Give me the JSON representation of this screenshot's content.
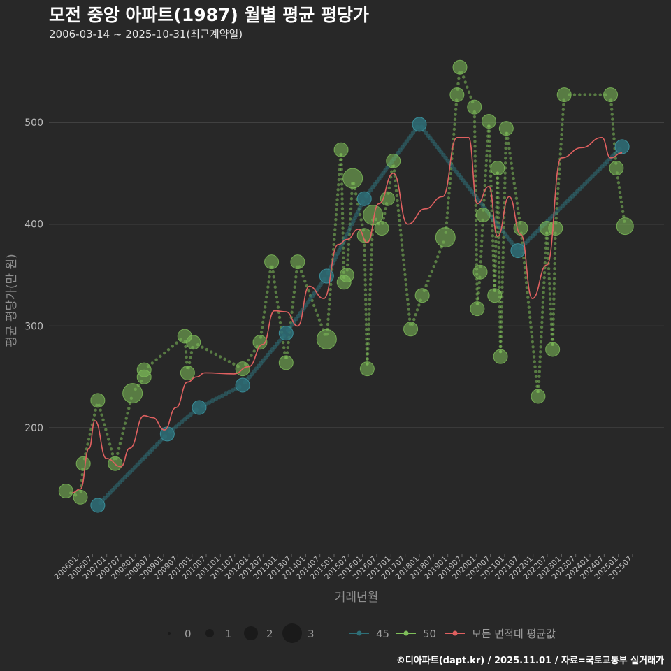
{
  "title": "모전 중앙 아파트(1987) 월별 평균 평당가",
  "subtitle": "2006-03-14 ~ 2025-10-31(최근계약일)",
  "caption": "©디아파트(dapt.kr) / 2025.11.01 / 자료=국토교통부 실거래가",
  "colors": {
    "background": "#282828",
    "grid": "#5a5a5a",
    "s45": "#2e6f78",
    "s50": "#7fbf5a",
    "avg": "#e06060"
  },
  "chart_data": {
    "type": "scatter",
    "title": "모전 중앙 아파트(1987) 월별 평균 평당가",
    "xlabel": "거래년월",
    "ylabel": "평균 평당가(만 원)",
    "ylim": [
      78,
      572
    ],
    "xlim": [
      2006.0,
      2026.0
    ],
    "y_ticks": [
      200,
      300,
      400,
      500
    ],
    "x_ticks": [
      "200601",
      "200607",
      "200701",
      "200707",
      "200801",
      "200807",
      "200901",
      "200907",
      "201001",
      "201007",
      "201101",
      "201107",
      "201201",
      "201207",
      "201301",
      "201307",
      "201401",
      "201407",
      "201501",
      "201507",
      "201601",
      "201607",
      "201701",
      "201707",
      "201801",
      "201807",
      "201901",
      "201907",
      "202001",
      "202007",
      "202101",
      "202107",
      "202201",
      "202207",
      "202301",
      "202307",
      "202401",
      "202407",
      "202501",
      "202507"
    ],
    "size_legend": {
      "title": "",
      "values": [
        "0",
        "1",
        "2",
        "3"
      ]
    },
    "series": [
      {
        "name": "45",
        "points": [
          {
            "x": 2007.3,
            "y": 124,
            "n": 1.5
          },
          {
            "x": 2009.7,
            "y": 194,
            "n": 1.5
          },
          {
            "x": 2010.8,
            "y": 220,
            "n": 1.5
          },
          {
            "x": 2012.3,
            "y": 242,
            "n": 1.5
          },
          {
            "x": 2013.8,
            "y": 293,
            "n": 1.5
          },
          {
            "x": 2015.2,
            "y": 349,
            "n": 1.5
          },
          {
            "x": 2016.5,
            "y": 425,
            "n": 1.5
          },
          {
            "x": 2018.4,
            "y": 498,
            "n": 1.5
          },
          {
            "x": 2021.8,
            "y": 374,
            "n": 1.5
          },
          {
            "x": 2025.4,
            "y": 476,
            "n": 1.5
          }
        ]
      },
      {
        "name": "50",
        "points": [
          {
            "x": 2006.2,
            "y": 138,
            "n": 1.5
          },
          {
            "x": 2006.7,
            "y": 132,
            "n": 1.5
          },
          {
            "x": 2006.8,
            "y": 165,
            "n": 1.5
          },
          {
            "x": 2007.3,
            "y": 227,
            "n": 1.5
          },
          {
            "x": 2007.9,
            "y": 165,
            "n": 1.5
          },
          {
            "x": 2008.5,
            "y": 234,
            "n": 2.5
          },
          {
            "x": 2008.9,
            "y": 250,
            "n": 1.5
          },
          {
            "x": 2008.9,
            "y": 257,
            "n": 1.5
          },
          {
            "x": 2010.3,
            "y": 290,
            "n": 1.5
          },
          {
            "x": 2010.4,
            "y": 254,
            "n": 1.5
          },
          {
            "x": 2010.6,
            "y": 284,
            "n": 1.5
          },
          {
            "x": 2012.3,
            "y": 258,
            "n": 1.5
          },
          {
            "x": 2012.9,
            "y": 284,
            "n": 1.5
          },
          {
            "x": 2013.3,
            "y": 363,
            "n": 1.5
          },
          {
            "x": 2013.8,
            "y": 264,
            "n": 1.5
          },
          {
            "x": 2014.2,
            "y": 363,
            "n": 1.5
          },
          {
            "x": 2015.2,
            "y": 287,
            "n": 2.5
          },
          {
            "x": 2015.7,
            "y": 473,
            "n": 1.5
          },
          {
            "x": 2015.8,
            "y": 343,
            "n": 1.5
          },
          {
            "x": 2015.9,
            "y": 350,
            "n": 1.5
          },
          {
            "x": 2016.1,
            "y": 445,
            "n": 2.5
          },
          {
            "x": 2016.5,
            "y": 389,
            "n": 1.5
          },
          {
            "x": 2016.6,
            "y": 258,
            "n": 1.5
          },
          {
            "x": 2016.8,
            "y": 409,
            "n": 2.5
          },
          {
            "x": 2017.1,
            "y": 396,
            "n": 1.5
          },
          {
            "x": 2017.3,
            "y": 425,
            "n": 1.5
          },
          {
            "x": 2017.5,
            "y": 462,
            "n": 1.5
          },
          {
            "x": 2018.1,
            "y": 297,
            "n": 1.5
          },
          {
            "x": 2018.5,
            "y": 330,
            "n": 1.5
          },
          {
            "x": 2019.3,
            "y": 387,
            "n": 2.5
          },
          {
            "x": 2019.7,
            "y": 527,
            "n": 1.5
          },
          {
            "x": 2019.8,
            "y": 554,
            "n": 1.5
          },
          {
            "x": 2020.3,
            "y": 515,
            "n": 1.5
          },
          {
            "x": 2020.4,
            "y": 317,
            "n": 1.5
          },
          {
            "x": 2020.5,
            "y": 353,
            "n": 1.5
          },
          {
            "x": 2020.6,
            "y": 409,
            "n": 1.5
          },
          {
            "x": 2020.8,
            "y": 501,
            "n": 1.5
          },
          {
            "x": 2021.0,
            "y": 330,
            "n": 1.5
          },
          {
            "x": 2021.1,
            "y": 455,
            "n": 1.5
          },
          {
            "x": 2021.2,
            "y": 270,
            "n": 1.5
          },
          {
            "x": 2021.4,
            "y": 494,
            "n": 1.5
          },
          {
            "x": 2021.9,
            "y": 396,
            "n": 1.5
          },
          {
            "x": 2022.5,
            "y": 231,
            "n": 1.5
          },
          {
            "x": 2022.8,
            "y": 396,
            "n": 1.5
          },
          {
            "x": 2023.0,
            "y": 277,
            "n": 1.5
          },
          {
            "x": 2023.1,
            "y": 396,
            "n": 1.5
          },
          {
            "x": 2023.4,
            "y": 527,
            "n": 1.5
          },
          {
            "x": 2025.0,
            "y": 527,
            "n": 1.5
          },
          {
            "x": 2025.2,
            "y": 455,
            "n": 1.5
          },
          {
            "x": 2025.5,
            "y": 398,
            "n": 2.0
          }
        ]
      },
      {
        "name": "모든 면적대 평균값",
        "type": "line",
        "points": [
          {
            "x": 2006.4,
            "y": 136
          },
          {
            "x": 2006.7,
            "y": 140
          },
          {
            "x": 2007.0,
            "y": 180
          },
          {
            "x": 2007.2,
            "y": 207
          },
          {
            "x": 2007.6,
            "y": 170
          },
          {
            "x": 2008.1,
            "y": 162
          },
          {
            "x": 2008.4,
            "y": 180
          },
          {
            "x": 2008.9,
            "y": 212
          },
          {
            "x": 2009.2,
            "y": 210
          },
          {
            "x": 2009.6,
            "y": 198
          },
          {
            "x": 2010.0,
            "y": 220
          },
          {
            "x": 2010.4,
            "y": 245
          },
          {
            "x": 2010.7,
            "y": 250
          },
          {
            "x": 2011.0,
            "y": 254
          },
          {
            "x": 2012.0,
            "y": 253
          },
          {
            "x": 2012.5,
            "y": 260
          },
          {
            "x": 2013.0,
            "y": 282
          },
          {
            "x": 2013.4,
            "y": 315
          },
          {
            "x": 2013.8,
            "y": 314
          },
          {
            "x": 2014.2,
            "y": 300
          },
          {
            "x": 2014.6,
            "y": 339
          },
          {
            "x": 2015.1,
            "y": 327
          },
          {
            "x": 2015.6,
            "y": 380
          },
          {
            "x": 2015.9,
            "y": 385
          },
          {
            "x": 2016.3,
            "y": 395
          },
          {
            "x": 2016.6,
            "y": 382
          },
          {
            "x": 2017.0,
            "y": 420
          },
          {
            "x": 2017.5,
            "y": 450
          },
          {
            "x": 2018.0,
            "y": 400
          },
          {
            "x": 2018.6,
            "y": 415
          },
          {
            "x": 2019.2,
            "y": 427
          },
          {
            "x": 2019.7,
            "y": 485
          },
          {
            "x": 2020.1,
            "y": 485
          },
          {
            "x": 2020.4,
            "y": 420
          },
          {
            "x": 2020.8,
            "y": 437
          },
          {
            "x": 2021.1,
            "y": 388
          },
          {
            "x": 2021.5,
            "y": 427
          },
          {
            "x": 2021.9,
            "y": 390
          },
          {
            "x": 2022.3,
            "y": 327
          },
          {
            "x": 2022.8,
            "y": 360
          },
          {
            "x": 2023.3,
            "y": 465
          },
          {
            "x": 2024.0,
            "y": 475
          },
          {
            "x": 2024.7,
            "y": 485
          },
          {
            "x": 2025.0,
            "y": 465
          },
          {
            "x": 2025.4,
            "y": 470
          }
        ]
      }
    ]
  }
}
